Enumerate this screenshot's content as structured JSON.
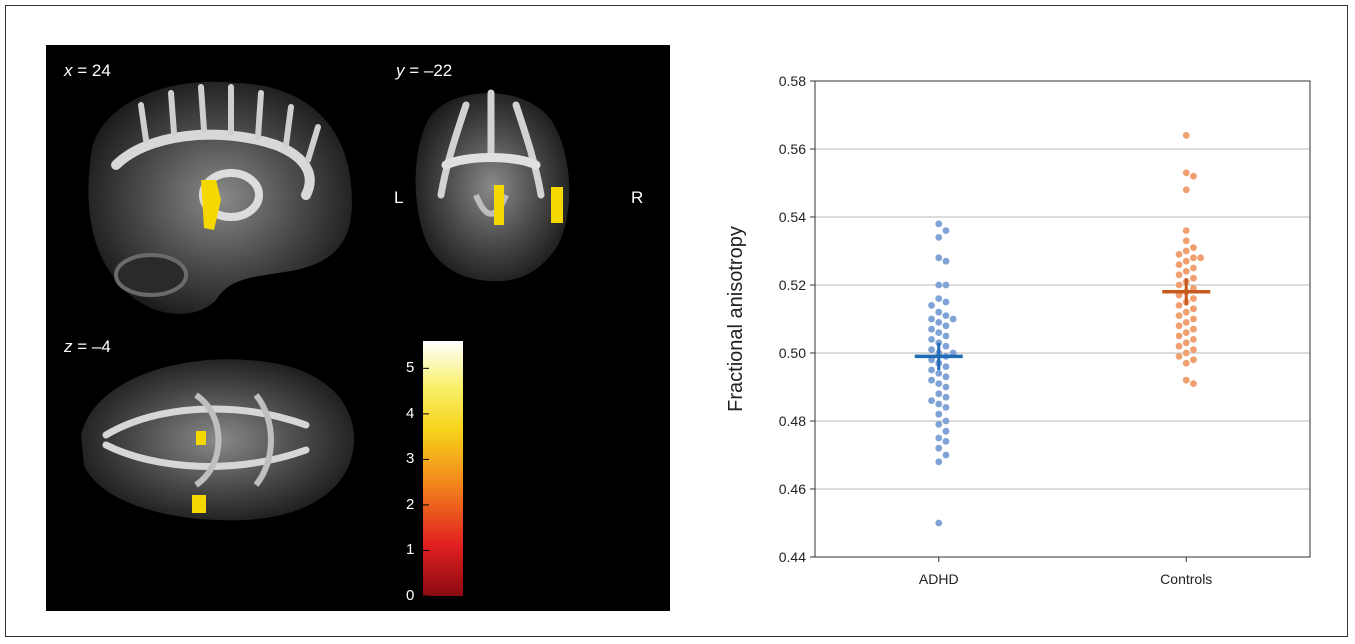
{
  "mri": {
    "sagittal_label_var": "x",
    "sagittal_label_val": " = 24",
    "coronal_label_var": "y",
    "coronal_label_val": " = –22",
    "axial_label_var": "z",
    "axial_label_val": " = –4",
    "left_label": "L",
    "right_label": "R",
    "colorbar_ticks": [
      "0",
      "1",
      "2",
      "3",
      "4",
      "5"
    ],
    "colorbar_max_value": 5.6,
    "colors": {
      "background": "#000000",
      "highlight": "#f5d800"
    }
  },
  "chart_data": {
    "type": "scatter",
    "ylabel": "Fractional anisotropy",
    "xlabel": "",
    "ylim": [
      0.44,
      0.58
    ],
    "yticks": [
      "0.44",
      "0.46",
      "0.48",
      "0.50",
      "0.52",
      "0.54",
      "0.56",
      "0.58"
    ],
    "categories": [
      "ADHD",
      "Controls"
    ],
    "grid": "horizontal",
    "series": [
      {
        "category": "ADHD",
        "color": "#7fa3d6",
        "mean_color": "#1f6bb5",
        "mean": 0.499,
        "error": [
          0.495,
          0.503
        ],
        "values": [
          0.538,
          0.536,
          0.534,
          0.528,
          0.527,
          0.52,
          0.52,
          0.516,
          0.515,
          0.514,
          0.512,
          0.511,
          0.51,
          0.51,
          0.509,
          0.508,
          0.507,
          0.506,
          0.505,
          0.504,
          0.503,
          0.502,
          0.501,
          0.5,
          0.5,
          0.499,
          0.498,
          0.497,
          0.496,
          0.495,
          0.494,
          0.493,
          0.492,
          0.491,
          0.49,
          0.488,
          0.487,
          0.486,
          0.485,
          0.484,
          0.482,
          0.48,
          0.479,
          0.477,
          0.475,
          0.474,
          0.472,
          0.47,
          0.468,
          0.45
        ]
      },
      {
        "category": "Controls",
        "color": "#f0a070",
        "mean_color": "#c75a1e",
        "mean": 0.518,
        "error": [
          0.514,
          0.522
        ],
        "values": [
          0.564,
          0.553,
          0.552,
          0.548,
          0.536,
          0.533,
          0.531,
          0.53,
          0.529,
          0.528,
          0.528,
          0.527,
          0.526,
          0.525,
          0.524,
          0.523,
          0.522,
          0.521,
          0.52,
          0.519,
          0.518,
          0.517,
          0.516,
          0.515,
          0.514,
          0.513,
          0.512,
          0.511,
          0.51,
          0.509,
          0.508,
          0.507,
          0.506,
          0.505,
          0.504,
          0.503,
          0.502,
          0.501,
          0.5,
          0.499,
          0.498,
          0.497,
          0.492,
          0.491
        ]
      }
    ]
  }
}
